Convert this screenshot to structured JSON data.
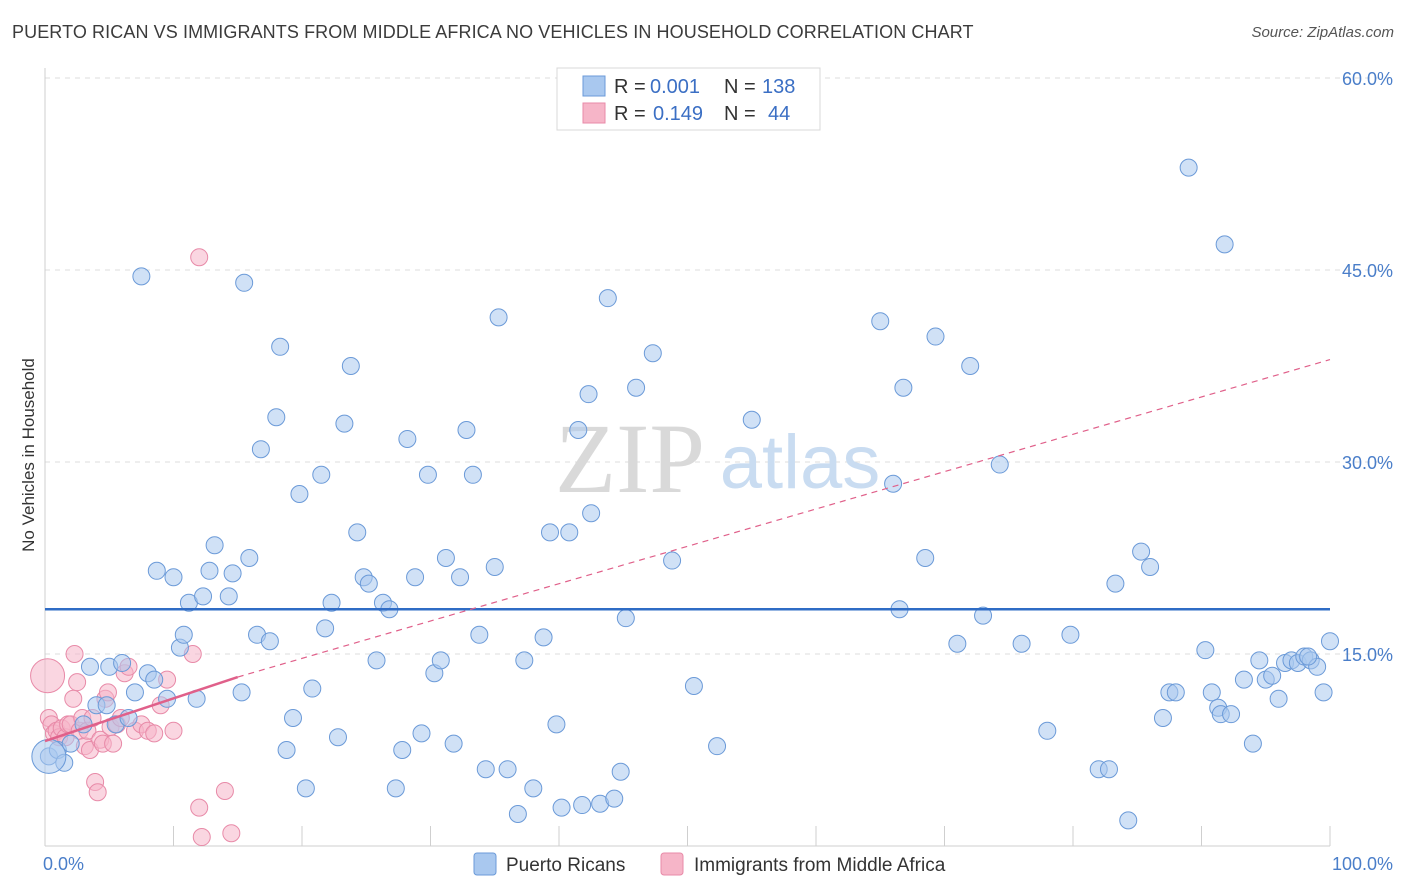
{
  "chart_data": {
    "type": "scatter",
    "title": "PUERTO RICAN VS IMMIGRANTS FROM MIDDLE AFRICA NO VEHICLES IN HOUSEHOLD CORRELATION CHART",
    "source": "Source: ZipAtlas.com",
    "ylabel": "No Vehicles in Household",
    "xlabel": "",
    "xlim": [
      0,
      100
    ],
    "ylim": [
      0,
      60
    ],
    "x_tick_labels": [
      "0.0%",
      "100.0%"
    ],
    "y_ticks": [
      15,
      30,
      45,
      60
    ],
    "y_tick_labels": [
      "15.0%",
      "30.0%",
      "45.0%",
      "60.0%"
    ],
    "watermark": {
      "zip": "ZIP",
      "atlas": "atlas"
    },
    "colors": {
      "series1_fill": "#a9c8ef",
      "series1_stroke": "#6b9ad8",
      "series1_line": "#2f6cc5",
      "series2_fill": "#f6b5c8",
      "series2_stroke": "#e88aa8",
      "series2_line": "#e0608a",
      "axis_text": "#4a7ec9",
      "grid": "#dddddd"
    },
    "legend": {
      "rows": [
        {
          "r_label": "R =",
          "r_value": "0.001",
          "n_label": "N =",
          "n_value": "138"
        },
        {
          "r_label": "R =",
          "r_value": "0.149",
          "n_label": "N =",
          "n_value": "44"
        }
      ]
    },
    "series": [
      {
        "name": "Puerto Ricans",
        "trend": {
          "x": [
            0,
            100
          ],
          "y": [
            18.5,
            18.5
          ]
        },
        "points": [
          [
            0.3,
            7.0
          ],
          [
            1.0,
            7.5
          ],
          [
            1.5,
            6.5
          ],
          [
            2.0,
            8.0
          ],
          [
            3.0,
            9.5
          ],
          [
            3.5,
            14.0
          ],
          [
            4.0,
            11.0
          ],
          [
            4.8,
            11.0
          ],
          [
            5.0,
            14.0
          ],
          [
            5.5,
            9.5
          ],
          [
            6.0,
            14.3
          ],
          [
            6.5,
            10.0
          ],
          [
            7.0,
            12.0
          ],
          [
            7.5,
            44.5
          ],
          [
            8.0,
            13.5
          ],
          [
            8.5,
            13.0
          ],
          [
            8.7,
            21.5
          ],
          [
            9.5,
            11.5
          ],
          [
            10.0,
            21.0
          ],
          [
            10.5,
            15.5
          ],
          [
            10.8,
            16.5
          ],
          [
            11.2,
            19.0
          ],
          [
            11.8,
            11.5
          ],
          [
            12.3,
            19.5
          ],
          [
            12.8,
            21.5
          ],
          [
            13.2,
            23.5
          ],
          [
            14.3,
            19.5
          ],
          [
            14.6,
            21.3
          ],
          [
            15.3,
            12.0
          ],
          [
            15.5,
            44.0
          ],
          [
            15.9,
            22.5
          ],
          [
            16.5,
            16.5
          ],
          [
            16.8,
            31.0
          ],
          [
            17.5,
            16.0
          ],
          [
            18.0,
            33.5
          ],
          [
            18.3,
            39.0
          ],
          [
            18.8,
            7.5
          ],
          [
            19.3,
            10.0
          ],
          [
            19.8,
            27.5
          ],
          [
            20.3,
            4.5
          ],
          [
            20.8,
            12.3
          ],
          [
            21.5,
            29.0
          ],
          [
            21.8,
            17.0
          ],
          [
            22.3,
            19.0
          ],
          [
            22.8,
            8.5
          ],
          [
            23.3,
            33.0
          ],
          [
            23.8,
            37.5
          ],
          [
            24.3,
            24.5
          ],
          [
            24.8,
            21.0
          ],
          [
            25.2,
            20.5
          ],
          [
            25.8,
            14.5
          ],
          [
            26.3,
            19.0
          ],
          [
            26.8,
            18.5
          ],
          [
            27.3,
            4.5
          ],
          [
            27.8,
            7.5
          ],
          [
            28.2,
            31.8
          ],
          [
            28.8,
            21.0
          ],
          [
            29.3,
            8.8
          ],
          [
            29.8,
            29.0
          ],
          [
            30.3,
            13.5
          ],
          [
            30.8,
            14.5
          ],
          [
            31.2,
            22.5
          ],
          [
            31.8,
            8.0
          ],
          [
            32.3,
            21.0
          ],
          [
            32.8,
            32.5
          ],
          [
            33.3,
            29.0
          ],
          [
            33.8,
            16.5
          ],
          [
            34.3,
            6.0
          ],
          [
            35.0,
            21.8
          ],
          [
            35.3,
            41.3
          ],
          [
            36.0,
            6.0
          ],
          [
            36.8,
            2.5
          ],
          [
            37.3,
            14.5
          ],
          [
            38.0,
            4.5
          ],
          [
            38.8,
            16.3
          ],
          [
            39.3,
            24.5
          ],
          [
            39.8,
            9.5
          ],
          [
            40.2,
            3.0
          ],
          [
            40.8,
            24.5
          ],
          [
            41.5,
            32.5
          ],
          [
            41.8,
            3.2
          ],
          [
            42.3,
            35.3
          ],
          [
            42.5,
            26.0
          ],
          [
            43.2,
            3.3
          ],
          [
            43.8,
            42.8
          ],
          [
            44.3,
            3.7
          ],
          [
            44.8,
            5.8
          ],
          [
            45.2,
            17.8
          ],
          [
            46.0,
            35.8
          ],
          [
            47.3,
            38.5
          ],
          [
            48.8,
            22.3
          ],
          [
            50.5,
            12.5
          ],
          [
            52.3,
            7.8
          ],
          [
            55.0,
            33.3
          ],
          [
            65.0,
            41.0
          ],
          [
            66.0,
            28.3
          ],
          [
            66.5,
            18.5
          ],
          [
            66.8,
            35.8
          ],
          [
            68.5,
            22.5
          ],
          [
            69.3,
            39.8
          ],
          [
            71.0,
            15.8
          ],
          [
            72.0,
            37.5
          ],
          [
            73.0,
            18.0
          ],
          [
            74.3,
            29.8
          ],
          [
            76.0,
            15.8
          ],
          [
            78.0,
            9.0
          ],
          [
            79.8,
            16.5
          ],
          [
            82.0,
            6.0
          ],
          [
            82.8,
            6.0
          ],
          [
            83.3,
            20.5
          ],
          [
            84.3,
            2.0
          ],
          [
            85.3,
            23.0
          ],
          [
            86.0,
            21.8
          ],
          [
            87.0,
            10.0
          ],
          [
            87.5,
            12.0
          ],
          [
            88.0,
            12.0
          ],
          [
            89.0,
            53.0
          ],
          [
            90.3,
            15.3
          ],
          [
            90.8,
            12.0
          ],
          [
            91.3,
            10.8
          ],
          [
            91.5,
            10.3
          ],
          [
            91.8,
            47.0
          ],
          [
            92.3,
            10.3
          ],
          [
            93.3,
            13.0
          ],
          [
            94.0,
            8.0
          ],
          [
            94.5,
            14.5
          ],
          [
            95.0,
            13.0
          ],
          [
            95.5,
            13.3
          ],
          [
            96.0,
            11.5
          ],
          [
            96.5,
            14.3
          ],
          [
            97.0,
            14.5
          ],
          [
            97.5,
            14.3
          ],
          [
            98.0,
            14.8
          ],
          [
            98.5,
            14.5
          ],
          [
            99.0,
            14.0
          ],
          [
            99.5,
            12.0
          ],
          [
            100.0,
            16.0
          ],
          [
            98.3,
            14.8
          ]
        ],
        "big_points": [
          [
            0.3,
            7.0
          ]
        ]
      },
      {
        "name": "Immigrants from Middle Africa",
        "trend": {
          "x": [
            0,
            15
          ],
          "y": [
            8.2,
            13.2
          ]
        },
        "trend_dashed": {
          "x": [
            15,
            100
          ],
          "y": [
            13.2,
            38.0
          ]
        },
        "points": [
          [
            0.2,
            13.3
          ],
          [
            0.3,
            10.0
          ],
          [
            0.5,
            9.5
          ],
          [
            0.7,
            8.8
          ],
          [
            0.9,
            9.0
          ],
          [
            1.1,
            8.5
          ],
          [
            1.3,
            9.2
          ],
          [
            1.6,
            8.5
          ],
          [
            1.8,
            9.5
          ],
          [
            2.0,
            9.5
          ],
          [
            2.2,
            11.5
          ],
          [
            2.5,
            12.8
          ],
          [
            2.7,
            9.0
          ],
          [
            2.9,
            10.0
          ],
          [
            3.1,
            7.8
          ],
          [
            3.3,
            9.0
          ],
          [
            3.5,
            7.5
          ],
          [
            3.7,
            10.0
          ],
          [
            3.9,
            5.0
          ],
          [
            4.1,
            4.2
          ],
          [
            4.3,
            8.3
          ],
          [
            4.5,
            8.0
          ],
          [
            4.7,
            11.5
          ],
          [
            4.9,
            12.0
          ],
          [
            5.1,
            9.3
          ],
          [
            5.3,
            8.0
          ],
          [
            5.6,
            9.5
          ],
          [
            5.9,
            10.0
          ],
          [
            6.2,
            13.5
          ],
          [
            6.5,
            14.0
          ],
          [
            7.0,
            9.0
          ],
          [
            7.5,
            9.5
          ],
          [
            8.0,
            9.0
          ],
          [
            8.5,
            8.8
          ],
          [
            9.0,
            11.0
          ],
          [
            9.5,
            13.0
          ],
          [
            10.0,
            9.0
          ],
          [
            11.5,
            15.0
          ],
          [
            12.0,
            3.0
          ],
          [
            12.2,
            0.7
          ],
          [
            14.0,
            4.3
          ],
          [
            12.0,
            46.0
          ],
          [
            14.5,
            1.0
          ],
          [
            2.3,
            15.0
          ]
        ]
      }
    ]
  },
  "bottom_legend": {
    "items": [
      "Puerto Ricans",
      "Immigrants from Middle Africa"
    ]
  }
}
